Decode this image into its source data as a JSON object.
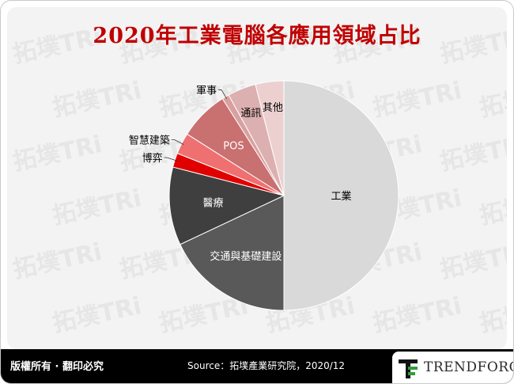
{
  "header": {
    "title": "2020年工業電腦各應用領域占比"
  },
  "watermark": {
    "text": "拓墣TRi"
  },
  "chart_data": {
    "type": "pie",
    "title": "2020年工業電腦各應用領域占比",
    "unit": "%",
    "slices": [
      {
        "label": "工業",
        "value": 50,
        "color": "#d9d9d9"
      },
      {
        "label": "交通與基礎建設",
        "value": 18,
        "color": "#595959"
      },
      {
        "label": "醫療",
        "value": 11,
        "color": "#3f3f3f"
      },
      {
        "label": "博弈",
        "value": 2,
        "color": "#e00000"
      },
      {
        "label": "智慧建築",
        "value": 3,
        "color": "#ee7070"
      },
      {
        "label": "POS",
        "value": 7,
        "color": "#c97070"
      },
      {
        "label": "軍事",
        "value": 1,
        "color": "#d9a0a0"
      },
      {
        "label": "通訊",
        "value": 4,
        "color": "#dcb0b0"
      },
      {
        "label": "其他",
        "value": 4,
        "color": "#ecd0d0"
      }
    ]
  },
  "footer": {
    "rights": "版權所有 · 翻印必究",
    "source": "Source：拓墣產業研究院，2020/12",
    "logo_text": "TRENDFORCE"
  }
}
